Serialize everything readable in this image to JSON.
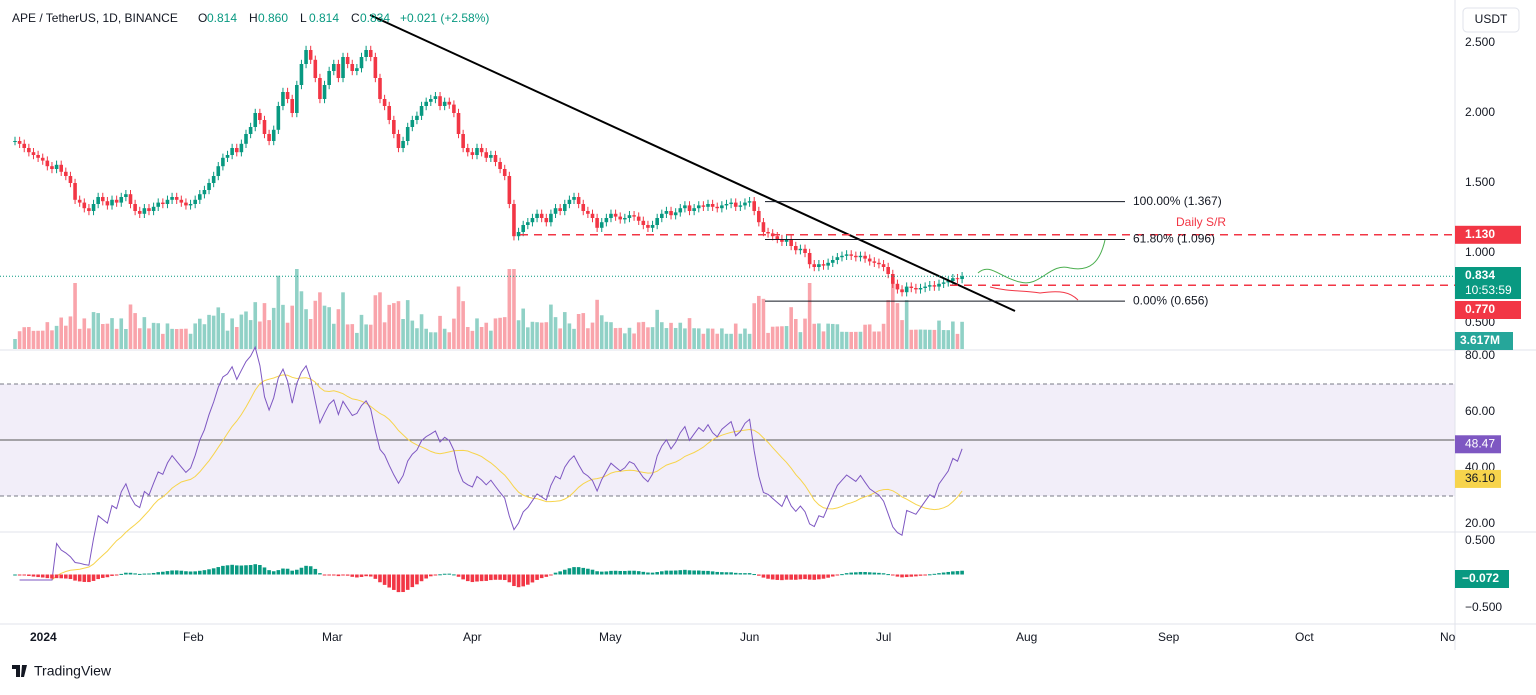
{
  "header": {
    "symbol": "APE / TetherUS, 1D, BINANCE",
    "ohlc": [
      {
        "key": "O",
        "value": "0.814"
      },
      {
        "key": "H",
        "value": "0.860"
      },
      {
        "key": "L",
        "value": "0.814"
      },
      {
        "key": "C",
        "value": "0.834"
      }
    ],
    "change": "+0.021 (+2.58%)"
  },
  "price": {
    "closes": [
      1.8,
      1.78,
      1.75,
      1.72,
      1.7,
      1.68,
      1.66,
      1.62,
      1.6,
      1.63,
      1.58,
      1.55,
      1.5,
      1.38,
      1.36,
      1.32,
      1.3,
      1.35,
      1.4,
      1.37,
      1.34,
      1.38,
      1.36,
      1.4,
      1.42,
      1.35,
      1.3,
      1.28,
      1.32,
      1.3,
      1.33,
      1.36,
      1.35,
      1.38,
      1.4,
      1.38,
      1.36,
      1.34,
      1.35,
      1.38,
      1.42,
      1.45,
      1.5,
      1.55,
      1.62,
      1.68,
      1.7,
      1.75,
      1.72,
      1.78,
      1.85,
      1.9,
      2.0,
      1.95,
      1.85,
      1.8,
      1.88,
      2.05,
      2.15,
      2.1,
      2.0,
      2.2,
      2.35,
      2.45,
      2.38,
      2.25,
      2.1,
      2.2,
      2.3,
      2.35,
      2.25,
      2.4,
      2.35,
      2.3,
      2.32,
      2.4,
      2.45,
      2.4,
      2.25,
      2.1,
      2.05,
      1.95,
      1.85,
      1.75,
      1.8,
      1.9,
      1.95,
      1.98,
      2.05,
      2.08,
      2.1,
      2.12,
      2.05,
      2.08,
      2.06,
      2.0,
      1.85,
      1.75,
      1.72,
      1.7,
      1.75,
      1.72,
      1.68,
      1.7,
      1.65,
      1.6,
      1.55,
      1.35,
      1.12,
      1.15,
      1.2,
      1.22,
      1.25,
      1.28,
      1.25,
      1.22,
      1.28,
      1.32,
      1.3,
      1.35,
      1.38,
      1.4,
      1.35,
      1.3,
      1.28,
      1.25,
      1.18,
      1.22,
      1.25,
      1.28,
      1.26,
      1.24,
      1.25,
      1.27,
      1.26,
      1.23,
      1.2,
      1.18,
      1.2,
      1.25,
      1.28,
      1.3,
      1.27,
      1.29,
      1.32,
      1.34,
      1.3,
      1.32,
      1.34,
      1.33,
      1.35,
      1.33,
      1.32,
      1.34,
      1.35,
      1.36,
      1.33,
      1.34,
      1.36,
      1.37,
      1.3,
      1.22,
      1.15,
      1.14,
      1.12,
      1.1,
      1.08,
      1.1,
      1.05,
      1.02,
      1.03,
      1.0,
      0.92,
      0.9,
      0.92,
      0.91,
      0.93,
      0.95,
      0.97,
      0.98,
      0.99,
      0.98,
      0.97,
      0.98,
      0.96,
      0.94,
      0.93,
      0.92,
      0.9,
      0.85,
      0.78,
      0.74,
      0.72,
      0.76,
      0.75,
      0.74,
      0.75,
      0.76,
      0.77,
      0.76,
      0.78,
      0.79,
      0.8,
      0.82,
      0.814,
      0.834
    ]
  },
  "price_axis": {
    "currency": "USDT",
    "ticks": [
      {
        "value": 2.5,
        "label": "2.500"
      },
      {
        "value": 2,
        "label": "2.000"
      },
      {
        "value": 1.5,
        "label": "1.500"
      },
      {
        "value": 1,
        "label": "1.000"
      },
      {
        "value": 0.5,
        "label": "0.500"
      }
    ],
    "badges": [
      {
        "value": 1.13,
        "label": "1.130",
        "color": "#f23645"
      },
      {
        "value": 0.834,
        "label": "0.834",
        "sub": "10:53:59",
        "color": "#089981"
      },
      {
        "value": 0.77,
        "label": "0.770",
        "color": "#f23645"
      }
    ],
    "volume": "3.617M"
  },
  "fib": [
    {
      "value": 1.367,
      "label": "100.00% (1.367)"
    },
    {
      "value": 1.096,
      "label": "61.80% (1.096)"
    },
    {
      "value": 0.656,
      "label": "0.00% (0.656)"
    }
  ],
  "sr_label": "Daily S/R",
  "rsi_axis": {
    "ticks": [
      {
        "value": 80,
        "label": "80.00"
      },
      {
        "value": 60,
        "label": "60.00"
      },
      {
        "value": 40,
        "label": "40.00"
      },
      {
        "value": 20,
        "label": "20.00"
      }
    ],
    "rsi": {
      "value": 48.47,
      "label": "48.47"
    },
    "ma": {
      "value": 36.1,
      "label": "36.10"
    }
  },
  "macd_axis": {
    "ticks": [
      {
        "value": 0.5,
        "label": "0.500"
      },
      {
        "value": -0.5,
        "label": "−0.500"
      }
    ],
    "hist": "−0.072"
  },
  "time_axis": [
    "2024",
    "Feb",
    "Mar",
    "Apr",
    "May",
    "Jun",
    "Jul",
    "Aug",
    "Sep",
    "Oct",
    "No"
  ],
  "footer": "TradingView"
}
